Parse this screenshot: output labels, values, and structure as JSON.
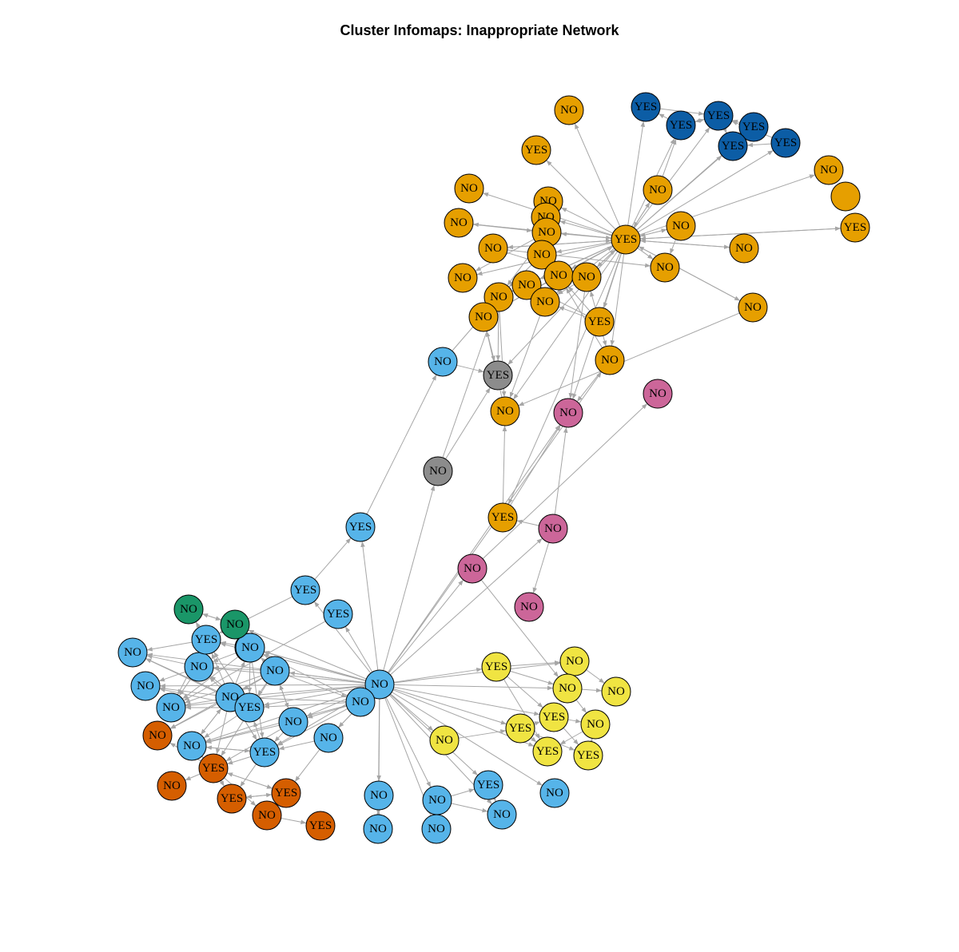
{
  "title": "Cluster Infomaps: Inappropriate Network",
  "colors": {
    "orange": "#E69F00",
    "navy": "#0C5DA5",
    "lightblue": "#56B4E9",
    "gray": "#8C8C8C",
    "pink": "#CC6699",
    "yellow": "#F0E442",
    "green": "#1A9668",
    "red": "#D55E00",
    "edge": "#A6A6A6"
  },
  "nodes": [
    {
      "id": "o1",
      "label": "NO",
      "cluster": "orange"
    },
    {
      "id": "o2",
      "label": "YES",
      "cluster": "orange"
    },
    {
      "id": "o3",
      "label": "NO",
      "cluster": "orange"
    },
    {
      "id": "o4",
      "label": "NO",
      "cluster": "orange"
    },
    {
      "id": "o5",
      "label": "NO",
      "cluster": "orange"
    },
    {
      "id": "o6",
      "label": "NO",
      "cluster": "orange"
    },
    {
      "id": "o7",
      "label": "NO",
      "cluster": "orange"
    },
    {
      "id": "o8",
      "label": "",
      "cluster": "orange"
    },
    {
      "id": "o9",
      "label": "YES",
      "cluster": "orange"
    },
    {
      "id": "o10",
      "label": "NO",
      "cluster": "orange"
    },
    {
      "id": "o11",
      "label": "YES",
      "cluster": "orange"
    },
    {
      "id": "o12",
      "label": "NO",
      "cluster": "orange"
    },
    {
      "id": "o13",
      "label": "NO",
      "cluster": "orange"
    },
    {
      "id": "o14",
      "label": "NO",
      "cluster": "orange"
    },
    {
      "id": "o15",
      "label": "NO",
      "cluster": "orange"
    },
    {
      "id": "o16",
      "label": "NO",
      "cluster": "orange"
    },
    {
      "id": "o17",
      "label": "NO",
      "cluster": "orange"
    },
    {
      "id": "o18",
      "label": "NO",
      "cluster": "orange"
    },
    {
      "id": "o19",
      "label": "NO",
      "cluster": "orange"
    },
    {
      "id": "o20",
      "label": "NO",
      "cluster": "orange"
    },
    {
      "id": "o21",
      "label": "NO",
      "cluster": "orange"
    },
    {
      "id": "o22",
      "label": "NO",
      "cluster": "orange"
    },
    {
      "id": "o23",
      "label": "NO",
      "cluster": "orange"
    },
    {
      "id": "o24",
      "label": "NO",
      "cluster": "orange"
    },
    {
      "id": "o25",
      "label": "NO",
      "cluster": "orange"
    },
    {
      "id": "o26",
      "label": "YES",
      "cluster": "orange"
    },
    {
      "id": "o27",
      "label": "NO",
      "cluster": "orange"
    },
    {
      "id": "o28",
      "label": "NO",
      "cluster": "orange"
    },
    {
      "id": "o29",
      "label": "YES",
      "cluster": "orange"
    },
    {
      "id": "n1",
      "label": "YES",
      "cluster": "navy"
    },
    {
      "id": "n2",
      "label": "YES",
      "cluster": "navy"
    },
    {
      "id": "n3",
      "label": "YES",
      "cluster": "navy"
    },
    {
      "id": "n4",
      "label": "YES",
      "cluster": "navy"
    },
    {
      "id": "n5",
      "label": "YES",
      "cluster": "navy"
    },
    {
      "id": "n6",
      "label": "YES",
      "cluster": "navy"
    },
    {
      "id": "g1",
      "label": "YES",
      "cluster": "gray"
    },
    {
      "id": "g2",
      "label": "NO",
      "cluster": "gray"
    },
    {
      "id": "p1",
      "label": "NO",
      "cluster": "pink"
    },
    {
      "id": "p2",
      "label": "NO",
      "cluster": "pink"
    },
    {
      "id": "p3",
      "label": "NO",
      "cluster": "pink"
    },
    {
      "id": "p4",
      "label": "NO",
      "cluster": "pink"
    },
    {
      "id": "p5",
      "label": "NO",
      "cluster": "pink"
    },
    {
      "id": "b1",
      "label": "NO",
      "cluster": "lightblue"
    },
    {
      "id": "b2",
      "label": "YES",
      "cluster": "lightblue"
    },
    {
      "id": "b3",
      "label": "YES",
      "cluster": "lightblue"
    },
    {
      "id": "b4",
      "label": "YES",
      "cluster": "lightblue"
    },
    {
      "id": "b5",
      "label": "YES",
      "cluster": "lightblue"
    },
    {
      "id": "b6",
      "label": "NO",
      "cluster": "lightblue"
    },
    {
      "id": "b7",
      "label": "NO",
      "cluster": "lightblue"
    },
    {
      "id": "b8",
      "label": "NO",
      "cluster": "lightblue"
    },
    {
      "id": "b9",
      "label": "NO",
      "cluster": "lightblue"
    },
    {
      "id": "b10",
      "label": "YES",
      "cluster": "lightblue"
    },
    {
      "id": "b11",
      "label": "NO",
      "cluster": "lightblue"
    },
    {
      "id": "b12",
      "label": "NO",
      "cluster": "lightblue"
    },
    {
      "id": "b13",
      "label": "NO",
      "cluster": "lightblue"
    },
    {
      "id": "b14",
      "label": "YES",
      "cluster": "lightblue"
    },
    {
      "id": "b15",
      "label": "NO",
      "cluster": "lightblue"
    },
    {
      "id": "b16",
      "label": "NO",
      "cluster": "lightblue"
    },
    {
      "id": "b17",
      "label": "NO",
      "cluster": "lightblue"
    },
    {
      "id": "b18",
      "label": "NO",
      "cluster": "lightblue"
    },
    {
      "id": "b19",
      "label": "YES",
      "cluster": "lightblue"
    },
    {
      "id": "b20",
      "label": "NO",
      "cluster": "lightblue"
    },
    {
      "id": "b21",
      "label": "NO",
      "cluster": "lightblue"
    },
    {
      "id": "b22",
      "label": "NO",
      "cluster": "lightblue"
    },
    {
      "id": "b23",
      "label": "NO",
      "cluster": "lightblue"
    },
    {
      "id": "b24",
      "label": "NO",
      "cluster": "lightblue"
    },
    {
      "id": "b25",
      "label": "YES",
      "cluster": "lightblue"
    },
    {
      "id": "b26",
      "label": "NO",
      "cluster": "lightblue"
    },
    {
      "id": "b27",
      "label": "NO",
      "cluster": "lightblue"
    },
    {
      "id": "e1",
      "label": "NO",
      "cluster": "green"
    },
    {
      "id": "e2",
      "label": "NO",
      "cluster": "green"
    },
    {
      "id": "y1",
      "label": "YES",
      "cluster": "yellow"
    },
    {
      "id": "y2",
      "label": "NO",
      "cluster": "yellow"
    },
    {
      "id": "y3",
      "label": "NO",
      "cluster": "yellow"
    },
    {
      "id": "y4",
      "label": "NO",
      "cluster": "yellow"
    },
    {
      "id": "y5",
      "label": "YES",
      "cluster": "yellow"
    },
    {
      "id": "y6",
      "label": "YES",
      "cluster": "yellow"
    },
    {
      "id": "y7",
      "label": "NO",
      "cluster": "yellow"
    },
    {
      "id": "y8",
      "label": "YES",
      "cluster": "yellow"
    },
    {
      "id": "y9",
      "label": "YES",
      "cluster": "yellow"
    },
    {
      "id": "y10",
      "label": "NO",
      "cluster": "yellow"
    },
    {
      "id": "r1",
      "label": "NO",
      "cluster": "red"
    },
    {
      "id": "r2",
      "label": "YES",
      "cluster": "red"
    },
    {
      "id": "r3",
      "label": "NO",
      "cluster": "red"
    },
    {
      "id": "r4",
      "label": "YES",
      "cluster": "red"
    },
    {
      "id": "r5",
      "label": "YES",
      "cluster": "red"
    },
    {
      "id": "r6",
      "label": "NO",
      "cluster": "red"
    },
    {
      "id": "r7",
      "label": "YES",
      "cluster": "red"
    }
  ],
  "edges": [
    [
      "o9",
      "o1"
    ],
    [
      "o9",
      "o2"
    ],
    [
      "o9",
      "o3"
    ],
    [
      "o9",
      "o4"
    ],
    [
      "o9",
      "o5"
    ],
    [
      "o9",
      "o6"
    ],
    [
      "o9",
      "o7"
    ],
    [
      "o9",
      "o10"
    ],
    [
      "o9",
      "o11"
    ],
    [
      "o9",
      "o12"
    ],
    [
      "o9",
      "o13"
    ],
    [
      "o9",
      "o14"
    ],
    [
      "o9",
      "o15"
    ],
    [
      "o9",
      "o16"
    ],
    [
      "o9",
      "o17"
    ],
    [
      "o9",
      "o18"
    ],
    [
      "o9",
      "o19"
    ],
    [
      "o9",
      "o20"
    ],
    [
      "o9",
      "o21"
    ],
    [
      "o9",
      "o22"
    ],
    [
      "o9",
      "o23"
    ],
    [
      "o9",
      "o24"
    ],
    [
      "o9",
      "o25"
    ],
    [
      "o9",
      "o26"
    ],
    [
      "o9",
      "o27"
    ],
    [
      "o9",
      "o28"
    ],
    [
      "o9",
      "n1"
    ],
    [
      "o9",
      "n2"
    ],
    [
      "o9",
      "n3"
    ],
    [
      "o9",
      "n4"
    ],
    [
      "o9",
      "n5"
    ],
    [
      "o9",
      "n6"
    ],
    [
      "o9",
      "p2"
    ],
    [
      "o9",
      "o29"
    ],
    [
      "o9",
      "g1"
    ],
    [
      "o10",
      "o9"
    ],
    [
      "o11",
      "o9"
    ],
    [
      "o12",
      "o9"
    ],
    [
      "o13",
      "o9"
    ],
    [
      "o14",
      "o9"
    ],
    [
      "o21",
      "o9"
    ],
    [
      "o22",
      "o9"
    ],
    [
      "o23",
      "o9"
    ],
    [
      "n2",
      "n1"
    ],
    [
      "n3",
      "n2"
    ],
    [
      "n4",
      "n3"
    ],
    [
      "n5",
      "n4"
    ],
    [
      "n6",
      "n5"
    ],
    [
      "n3",
      "n5"
    ],
    [
      "n2",
      "n3"
    ],
    [
      "n4",
      "n5"
    ],
    [
      "n1",
      "n3"
    ],
    [
      "n6",
      "n3"
    ],
    [
      "o6",
      "n2"
    ],
    [
      "o6",
      "o9"
    ],
    [
      "o10",
      "o15"
    ],
    [
      "o12",
      "o17"
    ],
    [
      "o15",
      "o18"
    ],
    [
      "o15",
      "o20"
    ],
    [
      "o16",
      "o20"
    ],
    [
      "o19",
      "o20"
    ],
    [
      "o21",
      "o25"
    ],
    [
      "o22",
      "o24"
    ],
    [
      "o21",
      "o24"
    ],
    [
      "o13",
      "o17"
    ],
    [
      "o13",
      "o22"
    ],
    [
      "o27",
      "o21"
    ],
    [
      "o27",
      "p2"
    ],
    [
      "o26",
      "o27"
    ],
    [
      "o26",
      "o19"
    ],
    [
      "o26",
      "o22"
    ],
    [
      "o26",
      "o24"
    ],
    [
      "o26",
      "o21"
    ],
    [
      "o20",
      "g1"
    ],
    [
      "o20",
      "o28"
    ],
    [
      "o25",
      "g1"
    ],
    [
      "o24",
      "o28"
    ],
    [
      "o23",
      "o28"
    ],
    [
      "o22",
      "p2"
    ],
    [
      "b1",
      "o20"
    ],
    [
      "b1",
      "g1"
    ],
    [
      "g2",
      "o20"
    ],
    [
      "g2",
      "g1"
    ],
    [
      "b2",
      "b1"
    ],
    [
      "b3",
      "b2"
    ],
    [
      "b3",
      "b10"
    ],
    [
      "b4",
      "b8"
    ],
    [
      "b5",
      "b12"
    ],
    [
      "y1",
      "y2"
    ],
    [
      "y1",
      "y3"
    ],
    [
      "y1",
      "y5"
    ],
    [
      "y3",
      "y4"
    ],
    [
      "y3",
      "y7"
    ],
    [
      "y5",
      "y7"
    ],
    [
      "y6",
      "y5"
    ],
    [
      "y6",
      "y8"
    ],
    [
      "y5",
      "y9"
    ],
    [
      "y9",
      "y7"
    ],
    [
      "y2",
      "y4"
    ],
    [
      "y7",
      "y8"
    ],
    [
      "y10",
      "y6"
    ],
    [
      "y1",
      "y8"
    ],
    [
      "y2",
      "y3"
    ],
    [
      "y6",
      "y9"
    ],
    [
      "p3",
      "p5"
    ],
    [
      "p3",
      "p2"
    ],
    [
      "p4",
      "p1"
    ],
    [
      "p4",
      "y3"
    ],
    [
      "p3",
      "o29"
    ],
    [
      "o29",
      "p2"
    ],
    [
      "o29",
      "o28"
    ],
    [
      "o28",
      "o25"
    ],
    [
      "e1",
      "e2"
    ],
    [
      "e2",
      "e1"
    ],
    [
      "b15",
      "e2"
    ],
    [
      "b15",
      "b4"
    ],
    [
      "b15",
      "b8"
    ],
    [
      "b15",
      "b9"
    ],
    [
      "b15",
      "b16"
    ],
    [
      "b15",
      "b17"
    ],
    [
      "b15",
      "b11"
    ],
    [
      "b15",
      "b12"
    ],
    [
      "b15",
      "b13"
    ],
    [
      "b15",
      "b14"
    ],
    [
      "b15",
      "b18"
    ],
    [
      "b15",
      "b19"
    ],
    [
      "b15",
      "b20"
    ],
    [
      "b15",
      "b6"
    ],
    [
      "b15",
      "b7"
    ],
    [
      "b15",
      "b10"
    ],
    [
      "b15",
      "b5"
    ],
    [
      "b15",
      "b3"
    ],
    [
      "b15",
      "g2"
    ],
    [
      "b15",
      "b2"
    ],
    [
      "b15",
      "p3"
    ],
    [
      "b15",
      "p4"
    ],
    [
      "b15",
      "p2"
    ],
    [
      "b15",
      "o27"
    ],
    [
      "b15",
      "y1"
    ],
    [
      "b15",
      "y2"
    ],
    [
      "b15",
      "y3"
    ],
    [
      "b15",
      "y6"
    ],
    [
      "b15",
      "y10"
    ],
    [
      "b15",
      "y5"
    ],
    [
      "b15",
      "y8"
    ],
    [
      "b15",
      "b22"
    ],
    [
      "b15",
      "b23"
    ],
    [
      "b15",
      "b24"
    ],
    [
      "b15",
      "b25"
    ],
    [
      "b15",
      "b26"
    ],
    [
      "b15",
      "b27"
    ],
    [
      "b15",
      "b21"
    ],
    [
      "b15",
      "b17"
    ],
    [
      "b16",
      "b15"
    ],
    [
      "b16",
      "b11"
    ],
    [
      "b16",
      "b14"
    ],
    [
      "b16",
      "b12"
    ],
    [
      "b16",
      "b19"
    ],
    [
      "b16",
      "b18"
    ],
    [
      "b16",
      "b20"
    ],
    [
      "b13",
      "b11"
    ],
    [
      "b13",
      "b12"
    ],
    [
      "b13",
      "b14"
    ],
    [
      "b13",
      "b16"
    ],
    [
      "b13",
      "b9"
    ],
    [
      "b13",
      "r2"
    ],
    [
      "b13",
      "r1"
    ],
    [
      "b13",
      "b18"
    ],
    [
      "b13",
      "b8"
    ],
    [
      "b11",
      "b6"
    ],
    [
      "b11",
      "b7"
    ],
    [
      "b11",
      "b9"
    ],
    [
      "b11",
      "r2"
    ],
    [
      "b11",
      "b12"
    ],
    [
      "b11",
      "b14"
    ],
    [
      "b11",
      "b10"
    ],
    [
      "b11",
      "b8"
    ],
    [
      "b11",
      "b20"
    ],
    [
      "b11",
      "r1"
    ],
    [
      "b11",
      "b19"
    ],
    [
      "b12",
      "b10"
    ],
    [
      "b12",
      "e2"
    ],
    [
      "b12",
      "b9"
    ],
    [
      "b12",
      "b8"
    ],
    [
      "b12",
      "b19"
    ],
    [
      "b12",
      "b14"
    ],
    [
      "b14",
      "b10"
    ],
    [
      "b14",
      "b7"
    ],
    [
      "b14",
      "b8"
    ],
    [
      "b14",
      "b6"
    ],
    [
      "b14",
      "b9"
    ],
    [
      "b14",
      "b20"
    ],
    [
      "b10",
      "b6"
    ],
    [
      "b10",
      "b8"
    ],
    [
      "b10",
      "e1"
    ],
    [
      "b10",
      "b9"
    ],
    [
      "b9",
      "b6"
    ],
    [
      "b9",
      "b7"
    ],
    [
      "b9",
      "b8"
    ],
    [
      "b19",
      "b20"
    ],
    [
      "b19",
      "r2"
    ],
    [
      "b19",
      "r4"
    ],
    [
      "b19",
      "b14"
    ],
    [
      "b19",
      "b11"
    ],
    [
      "b17",
      "r5"
    ],
    [
      "b17",
      "b19"
    ],
    [
      "b18",
      "b20"
    ],
    [
      "b18",
      "b19"
    ],
    [
      "b18",
      "r2"
    ],
    [
      "b18",
      "b13"
    ],
    [
      "r2",
      "r1"
    ],
    [
      "r2",
      "r3"
    ],
    [
      "r2",
      "r4"
    ],
    [
      "r2",
      "r5"
    ],
    [
      "r4",
      "r5"
    ],
    [
      "r5",
      "r4"
    ],
    [
      "r2",
      "r6"
    ],
    [
      "r6",
      "r7"
    ],
    [
      "r5",
      "r2"
    ],
    [
      "b20",
      "r2"
    ],
    [
      "b20",
      "b19"
    ],
    [
      "b20",
      "b11"
    ],
    [
      "b22",
      "b23"
    ],
    [
      "b23",
      "b22"
    ],
    [
      "b24",
      "b25"
    ],
    [
      "b25",
      "b26"
    ],
    [
      "b24",
      "b26"
    ]
  ]
}
